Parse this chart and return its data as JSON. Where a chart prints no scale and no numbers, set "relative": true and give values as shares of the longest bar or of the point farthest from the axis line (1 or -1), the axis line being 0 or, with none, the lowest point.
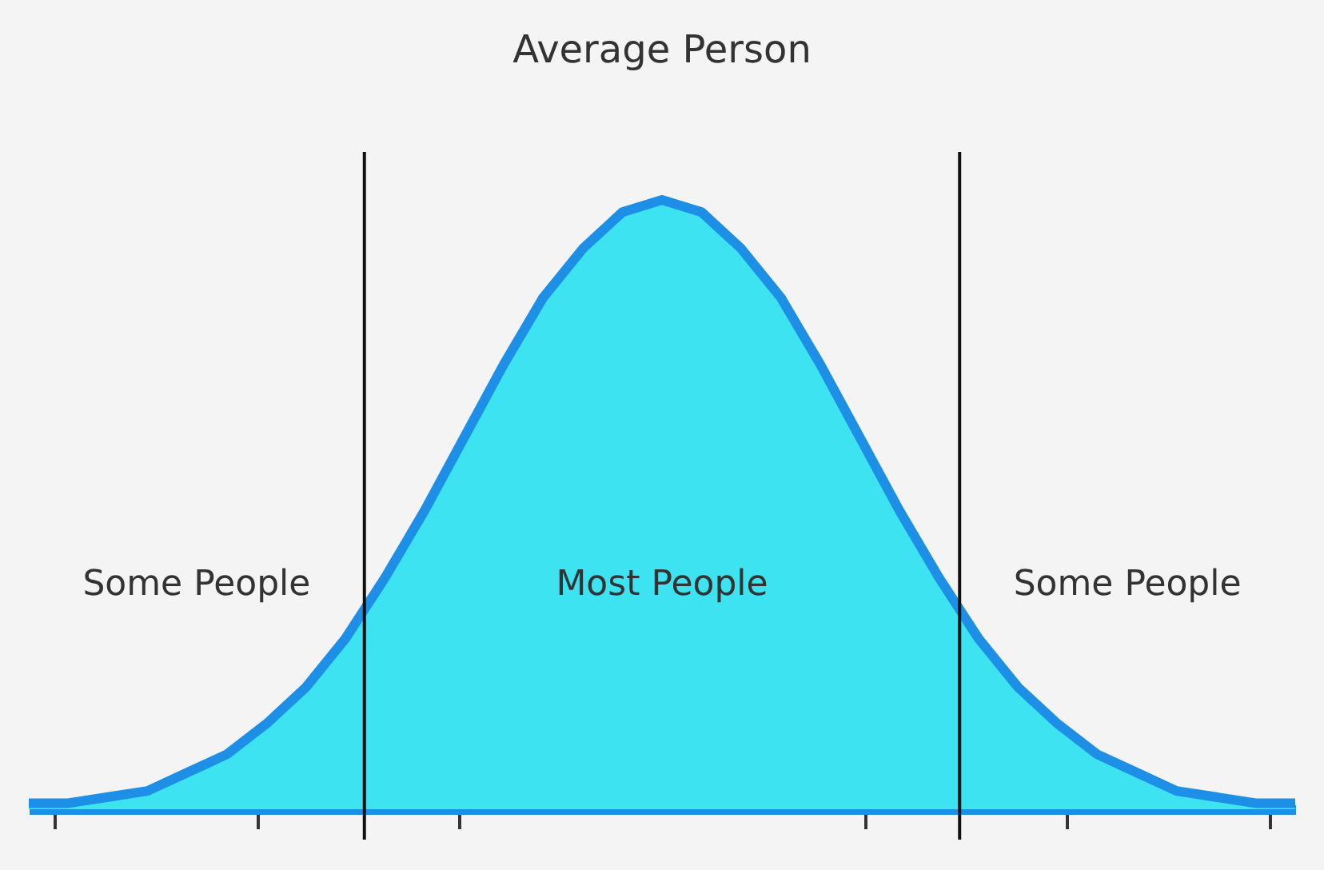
{
  "chart_data": {
    "type": "area",
    "title": "Average Person",
    "relative": true,
    "categories": [
      null,
      null,
      null,
      null,
      null,
      null,
      null,
      null,
      null,
      null,
      null,
      null,
      null,
      null,
      null,
      null,
      null,
      null,
      null,
      null,
      null,
      null,
      null,
      null,
      null,
      null,
      null,
      null,
      null,
      null,
      null,
      null,
      null
    ],
    "series": [
      {
        "color": "#1d8fe6",
        "values": [
          0.01,
          0.01,
          0.02,
          0.03,
          0.06,
          0.09,
          0.14,
          0.2,
          0.28,
          0.38,
          0.49,
          0.61,
          0.73,
          0.84,
          0.92,
          0.98,
          1,
          0.98,
          0.92,
          0.84,
          0.73,
          0.61,
          0.49,
          0.38,
          0.28,
          0.2,
          0.14,
          0.09,
          0.06,
          0.03,
          0.02,
          0.01,
          0.01
        ]
      }
    ],
    "annotations": [
      "Some People",
      "Most People",
      "Some People"
    ]
  }
}
